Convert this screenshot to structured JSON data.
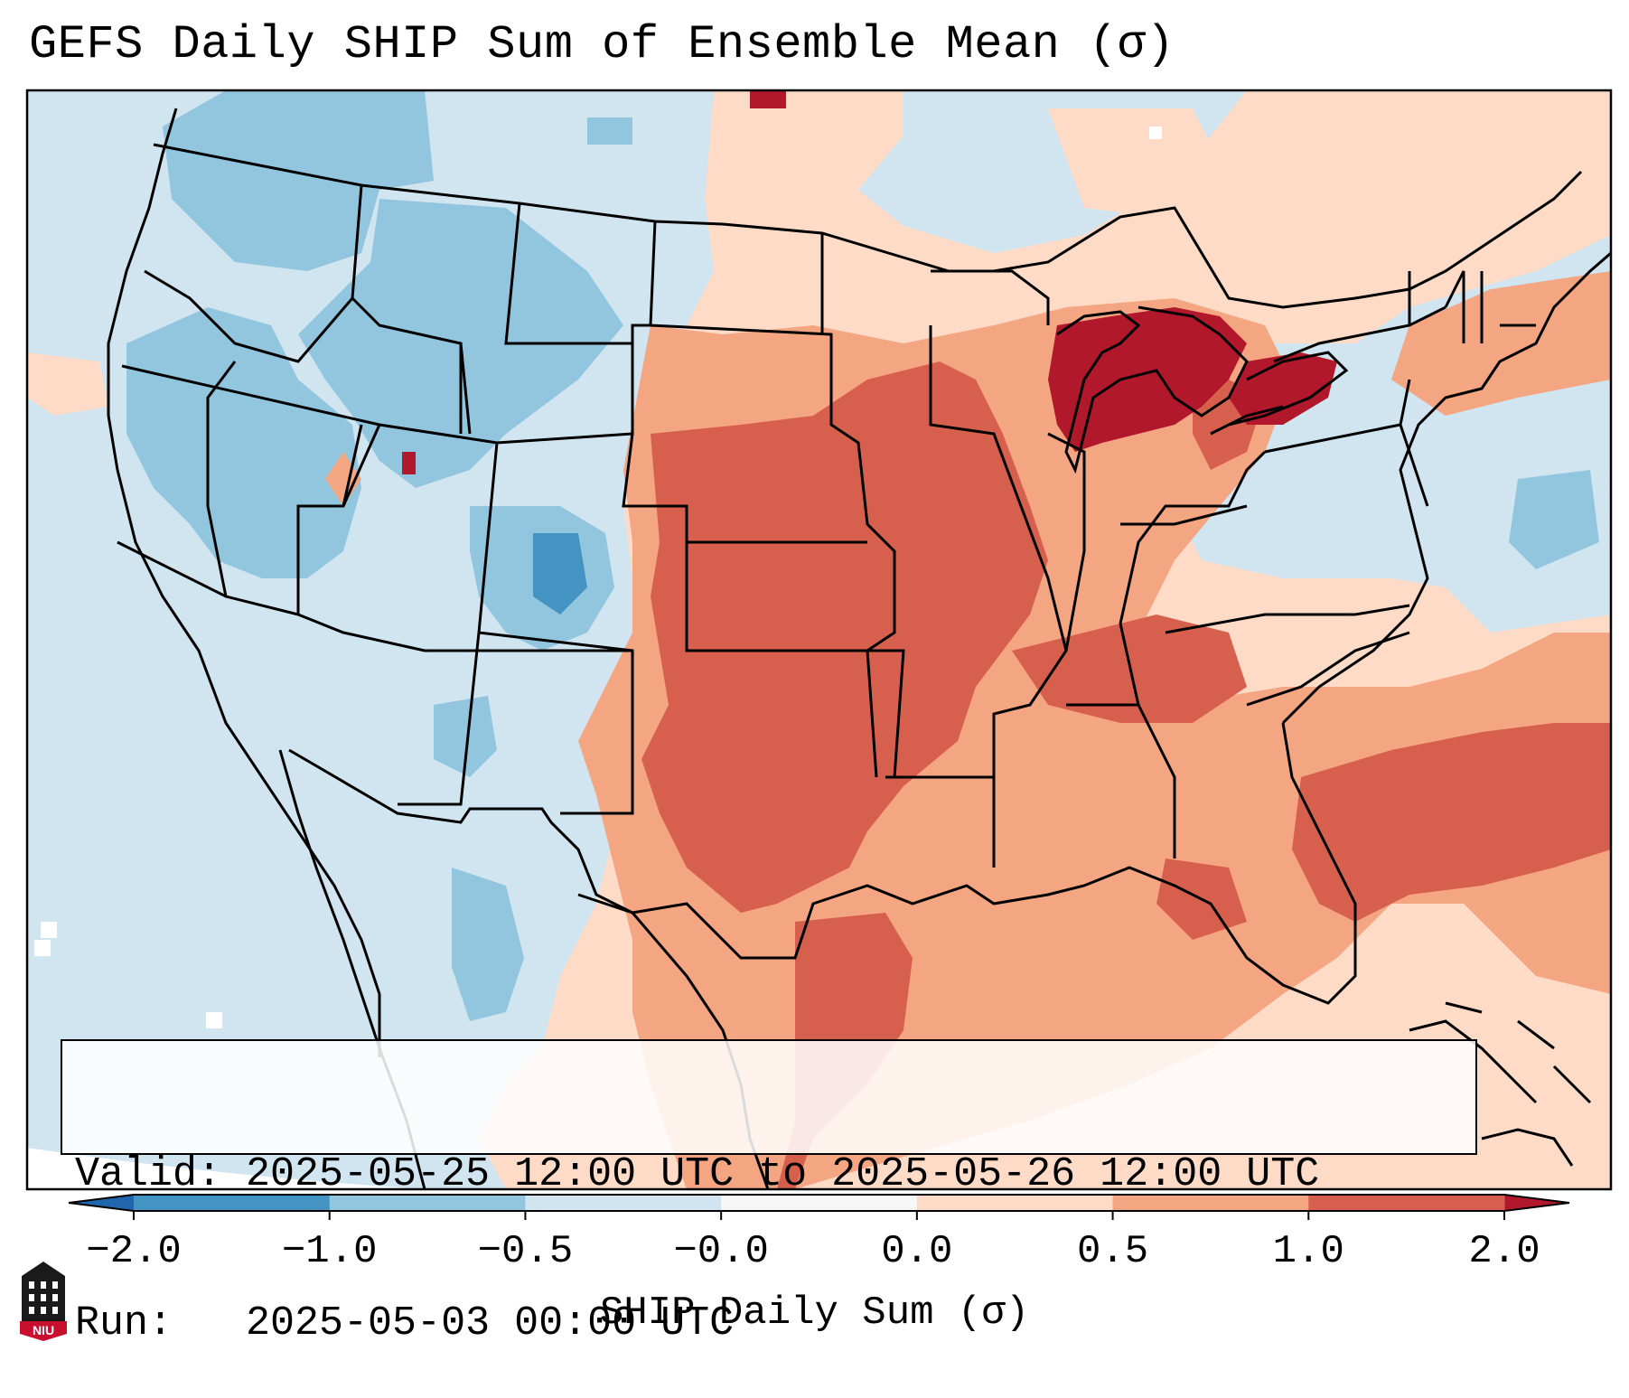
{
  "title": "GEFS Daily SHIP Sum of Ensemble Mean (σ)",
  "info": {
    "valid": "Valid: 2025-05-25 12:00 UTC to 2025-05-26 12:00 UTC",
    "run": "Run:   2025-05-03 00:00 UTC"
  },
  "colorbar": {
    "label": "SHIP Daily Sum (σ)",
    "ticks": [
      "−2.0",
      "−1.0",
      "−0.5",
      "−0.0",
      "0.0",
      "0.5",
      "1.0",
      "2.0"
    ],
    "colors": [
      "#4393c3",
      "#92c5de",
      "#d1e5f0",
      "#f7f7f7",
      "#fddbc7",
      "#f4a582",
      "#d6604d"
    ],
    "extend_low_color": "#2166ac",
    "extend_high_color": "#b2182b"
  },
  "logo": {
    "text": "NIU",
    "colors": [
      "#c8102e",
      "#000000"
    ]
  }
}
